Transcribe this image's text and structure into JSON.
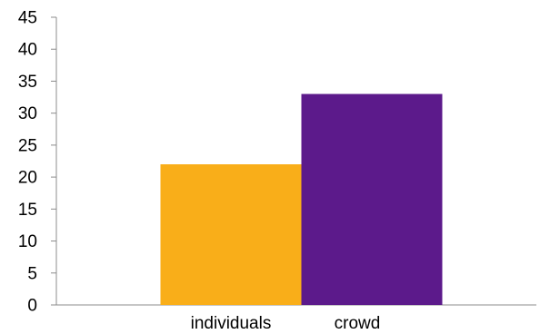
{
  "chart_data": {
    "type": "bar",
    "title": "",
    "xlabel": "",
    "ylabel": "",
    "categories": [
      "individuals",
      "crowd"
    ],
    "values": [
      22,
      33
    ],
    "colors": [
      "#F9AE19",
      "#5C1A8B"
    ],
    "ylim": [
      0,
      45
    ],
    "yticks": [
      0,
      5,
      10,
      15,
      20,
      25,
      30,
      35,
      40,
      45
    ],
    "grid": false,
    "legend": "none"
  }
}
